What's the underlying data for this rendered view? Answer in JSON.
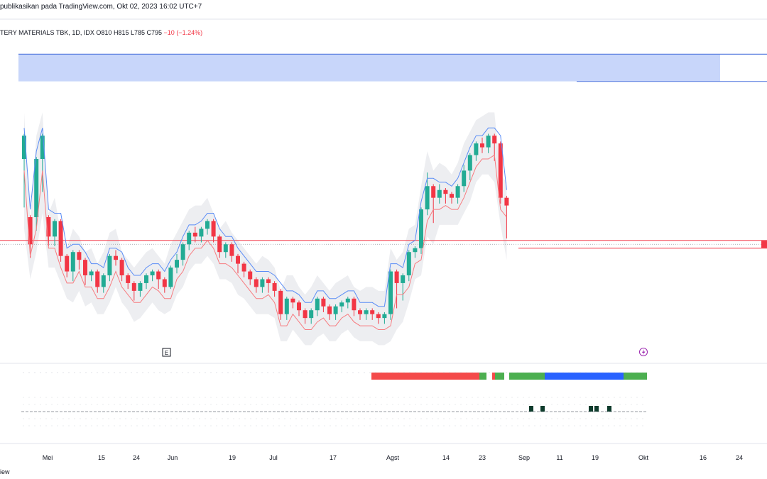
{
  "header": {
    "published_line": "publikasikan pada TradingView.com, Okt 02, 2023 16:02 UTC+7",
    "symbol_line": "TERY MATERIALS TBK, 1D, IDX",
    "ohlc": {
      "open": "O810",
      "high": "H815",
      "low": "L785",
      "close": "C795",
      "change": "−10 (−1.24%)"
    }
  },
  "markers": {
    "earnings_label": "E",
    "event_icon": "lightning-icon"
  },
  "footer_fragment": "iew",
  "colors": {
    "up": "#22ab94",
    "down": "#f23645",
    "resistance_zone": "#c8d6fa",
    "resistance_line": "#5b7fe0",
    "trail_upper": "#5b8df6",
    "trail_lower": "#f77c80",
    "band_fill": "#e9eaee",
    "state_red": "#f44a4a",
    "state_green": "#4caf50",
    "state_blue": "#2962ff",
    "signal": "#0e3b2c"
  },
  "chart_data": {
    "type": "candlestick",
    "title": "",
    "x_ticks": [
      "Mei",
      "15",
      "24",
      "Jun",
      "19",
      "Jul",
      "17",
      "Agst",
      "14",
      "23",
      "Sep",
      "11",
      "19",
      "Okt",
      "16",
      "24"
    ],
    "candles_approx": [
      [
        60,
        66,
        60,
        48
      ],
      [
        45,
        38,
        38,
        35
      ],
      [
        45,
        60,
        60,
        42
      ],
      [
        60,
        66,
        60,
        52
      ],
      [
        45,
        40,
        40,
        38
      ],
      [
        40,
        44,
        44,
        38
      ],
      [
        44,
        35,
        35,
        34
      ],
      [
        35,
        31,
        31,
        30
      ],
      [
        31,
        36,
        36,
        29
      ],
      [
        36,
        34,
        34,
        32
      ],
      [
        34,
        30,
        30,
        28
      ],
      [
        30,
        31,
        31,
        29
      ],
      [
        31,
        27,
        27,
        26
      ],
      [
        27,
        30,
        30,
        26
      ],
      [
        30,
        35,
        35,
        29
      ],
      [
        35,
        34,
        36,
        33
      ],
      [
        34,
        30,
        30,
        29
      ],
      [
        30,
        28,
        28,
        27
      ],
      [
        28,
        26,
        26,
        24
      ],
      [
        26,
        28,
        28,
        25
      ],
      [
        28,
        30,
        30,
        27
      ],
      [
        30,
        31,
        31,
        29
      ],
      [
        31,
        29,
        29,
        27
      ],
      [
        29,
        27,
        27,
        26
      ],
      [
        27,
        32,
        32,
        27
      ],
      [
        32,
        34,
        35,
        31
      ],
      [
        34,
        38,
        38,
        33
      ],
      [
        38,
        41,
        41,
        37
      ],
      [
        41,
        40,
        42,
        39
      ],
      [
        40,
        42,
        42,
        39
      ],
      [
        42,
        44,
        44,
        41
      ],
      [
        44,
        40,
        40,
        39
      ],
      [
        40,
        36,
        36,
        35
      ],
      [
        36,
        38,
        38,
        35
      ],
      [
        38,
        35,
        35,
        34
      ],
      [
        35,
        33,
        33,
        31
      ],
      [
        33,
        31,
        31,
        30
      ],
      [
        31,
        29,
        29,
        28
      ],
      [
        29,
        27,
        27,
        26
      ],
      [
        27,
        29,
        29,
        26
      ],
      [
        29,
        28,
        28,
        26
      ],
      [
        28,
        26,
        26,
        25
      ],
      [
        26,
        20,
        20,
        19
      ],
      [
        20,
        24,
        24,
        19
      ],
      [
        24,
        23,
        24,
        22
      ],
      [
        23,
        21,
        21,
        20
      ],
      [
        21,
        19,
        19,
        18
      ],
      [
        19,
        21,
        21,
        18
      ],
      [
        21,
        24,
        24,
        20
      ],
      [
        24,
        22,
        22,
        21
      ],
      [
        22,
        20,
        20,
        19
      ],
      [
        20,
        22,
        22,
        19
      ],
      [
        22,
        23,
        23,
        21
      ],
      [
        23,
        24,
        24,
        22
      ],
      [
        24,
        21,
        21,
        20
      ],
      [
        21,
        20,
        20,
        19
      ],
      [
        20,
        21,
        21,
        19
      ],
      [
        21,
        20,
        21,
        19
      ],
      [
        20,
        19,
        20,
        18
      ],
      [
        19,
        20,
        20,
        18
      ],
      [
        20,
        31,
        31,
        19
      ],
      [
        31,
        28,
        28,
        22
      ],
      [
        28,
        30,
        30,
        24
      ],
      [
        30,
        36,
        36,
        29
      ],
      [
        36,
        37,
        37,
        35
      ],
      [
        37,
        47,
        47,
        36
      ],
      [
        47,
        53,
        56,
        46
      ],
      [
        53,
        50,
        51,
        44
      ],
      [
        50,
        52,
        53,
        49
      ],
      [
        52,
        51,
        52,
        49
      ],
      [
        51,
        50,
        50,
        49
      ],
      [
        50,
        53,
        53,
        49
      ],
      [
        53,
        57,
        58,
        52
      ],
      [
        57,
        61,
        61,
        55
      ],
      [
        61,
        64,
        64,
        60
      ],
      [
        64,
        63,
        65,
        62
      ],
      [
        63,
        66,
        66,
        62
      ],
      [
        66,
        64,
        66,
        60
      ],
      [
        64,
        50,
        50,
        49
      ],
      [
        50,
        48,
        48,
        40
      ]
    ],
    "ylim": [
      15,
      90
    ],
    "resistance_zone": [
      80,
      87
    ],
    "support_level": 37
  }
}
